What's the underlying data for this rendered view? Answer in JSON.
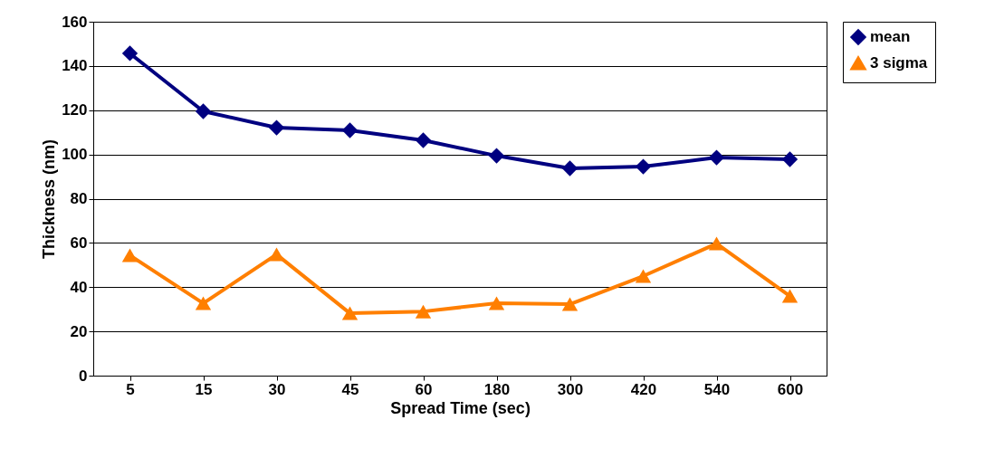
{
  "chart_data": {
    "type": "line",
    "xlabel": "Spread Time (sec)",
    "ylabel": "Thickness (nm)",
    "categories": [
      "5",
      "15",
      "30",
      "45",
      "60",
      "180",
      "300",
      "420",
      "540",
      "600"
    ],
    "series": [
      {
        "name": "mean",
        "color": "#000080",
        "marker": "diamond",
        "values": [
          145.7,
          119.5,
          112.1,
          110.9,
          106.4,
          99.4,
          93.7,
          94.5,
          98.6,
          97.8
        ]
      },
      {
        "name": "3 sigma",
        "color": "#ff7f00",
        "marker": "triangle",
        "values": [
          54.4,
          32.7,
          54.8,
          28.2,
          29.0,
          32.7,
          32.3,
          45.0,
          59.7,
          36.0
        ]
      }
    ],
    "ylim": [
      0,
      160
    ],
    "yticks": [
      0,
      20,
      40,
      60,
      80,
      100,
      120,
      140,
      160
    ],
    "grid": "y",
    "legend": "right",
    "line_style": "solid"
  }
}
